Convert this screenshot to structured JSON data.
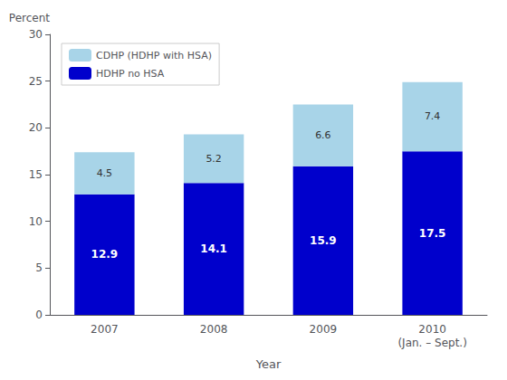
{
  "chart_data": {
    "type": "bar",
    "xlabel": "Year",
    "ylabel": "Percent",
    "categories": [
      "2007",
      "2008",
      "2009",
      "2010\n(Jan. – Sept.)"
    ],
    "series": [
      {
        "name": "HDHP no HSA",
        "color": "#0000cc",
        "values": [
          12.9,
          14.1,
          15.9,
          17.5
        ]
      },
      {
        "name": "CDHP (HDHP with HSA)",
        "color": "#a8d4e8",
        "values": [
          4.5,
          5.2,
          6.6,
          7.4
        ]
      }
    ],
    "totals": [
      17.5,
      19.4,
      22.5,
      24.9
    ],
    "stacked": true,
    "data_labels": true,
    "legend": "upper left",
    "grid": false,
    "ylim": [
      0,
      30
    ],
    "yticks": [
      0,
      5,
      10,
      15,
      20,
      25,
      30
    ]
  }
}
